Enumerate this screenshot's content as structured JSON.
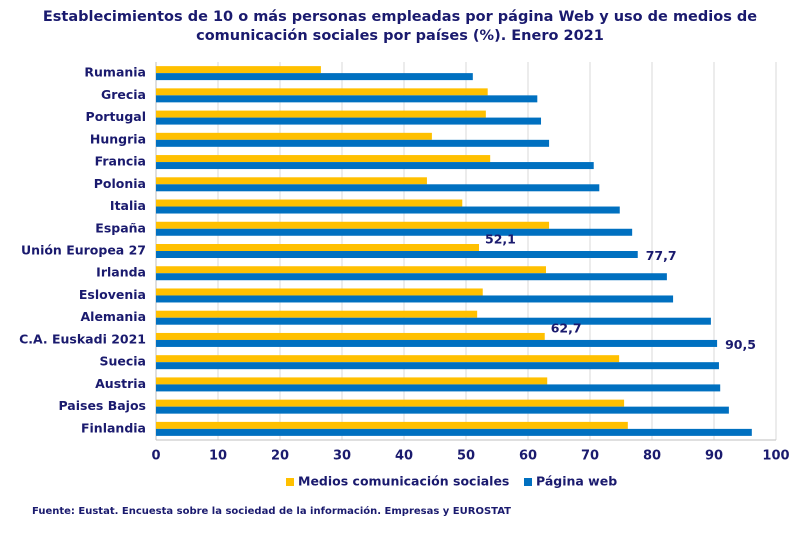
{
  "chart_data": {
    "type": "hbar",
    "title": [
      "Establecimientos de 10 o más personas empleadas por página Web y uso de medios de",
      "comunicación sociales por países (%). Enero 2021"
    ],
    "categories": [
      "Rumania",
      "Grecia",
      "Portugal",
      "Hungria",
      "Francia",
      "Polonia",
      "Italia",
      "España",
      "Unión Europea 27",
      "Irlanda",
      "Eslovenia",
      "Alemania",
      "C.A. Euskadi 2021",
      "Suecia",
      "Austria",
      "Paises Bajos",
      "Finlandia"
    ],
    "series": [
      {
        "name": "Medios comunicación sociales",
        "color": "#ffc000",
        "values": [
          26.6,
          53.5,
          53.2,
          44.5,
          53.9,
          43.7,
          49.4,
          63.4,
          52.1,
          62.9,
          52.7,
          51.8,
          62.7,
          74.7,
          63.1,
          75.5,
          76.1
        ],
        "value_labels": [
          null,
          null,
          null,
          null,
          null,
          null,
          null,
          null,
          "52,1",
          null,
          null,
          null,
          "62,7",
          null,
          null,
          null,
          null
        ]
      },
      {
        "name": "Página web",
        "color": "#0070c0",
        "values": [
          51.1,
          61.5,
          62.1,
          63.4,
          70.6,
          71.5,
          74.8,
          76.8,
          77.7,
          82.4,
          83.4,
          89.5,
          90.5,
          90.8,
          91.0,
          92.4,
          96.1
        ],
        "value_labels": [
          null,
          null,
          null,
          null,
          null,
          null,
          null,
          null,
          "77,7",
          null,
          null,
          null,
          "90,5",
          null,
          null,
          null,
          null
        ]
      }
    ],
    "xlim": [
      0,
      100
    ],
    "xticks": [
      0,
      10,
      20,
      30,
      40,
      50,
      60,
      70,
      80,
      90,
      100
    ],
    "grid": true,
    "legend": "bottom",
    "source": "Fuente: Eustat. Encuesta sobre la sociedad de la información. Empresas y EUROSTAT"
  }
}
